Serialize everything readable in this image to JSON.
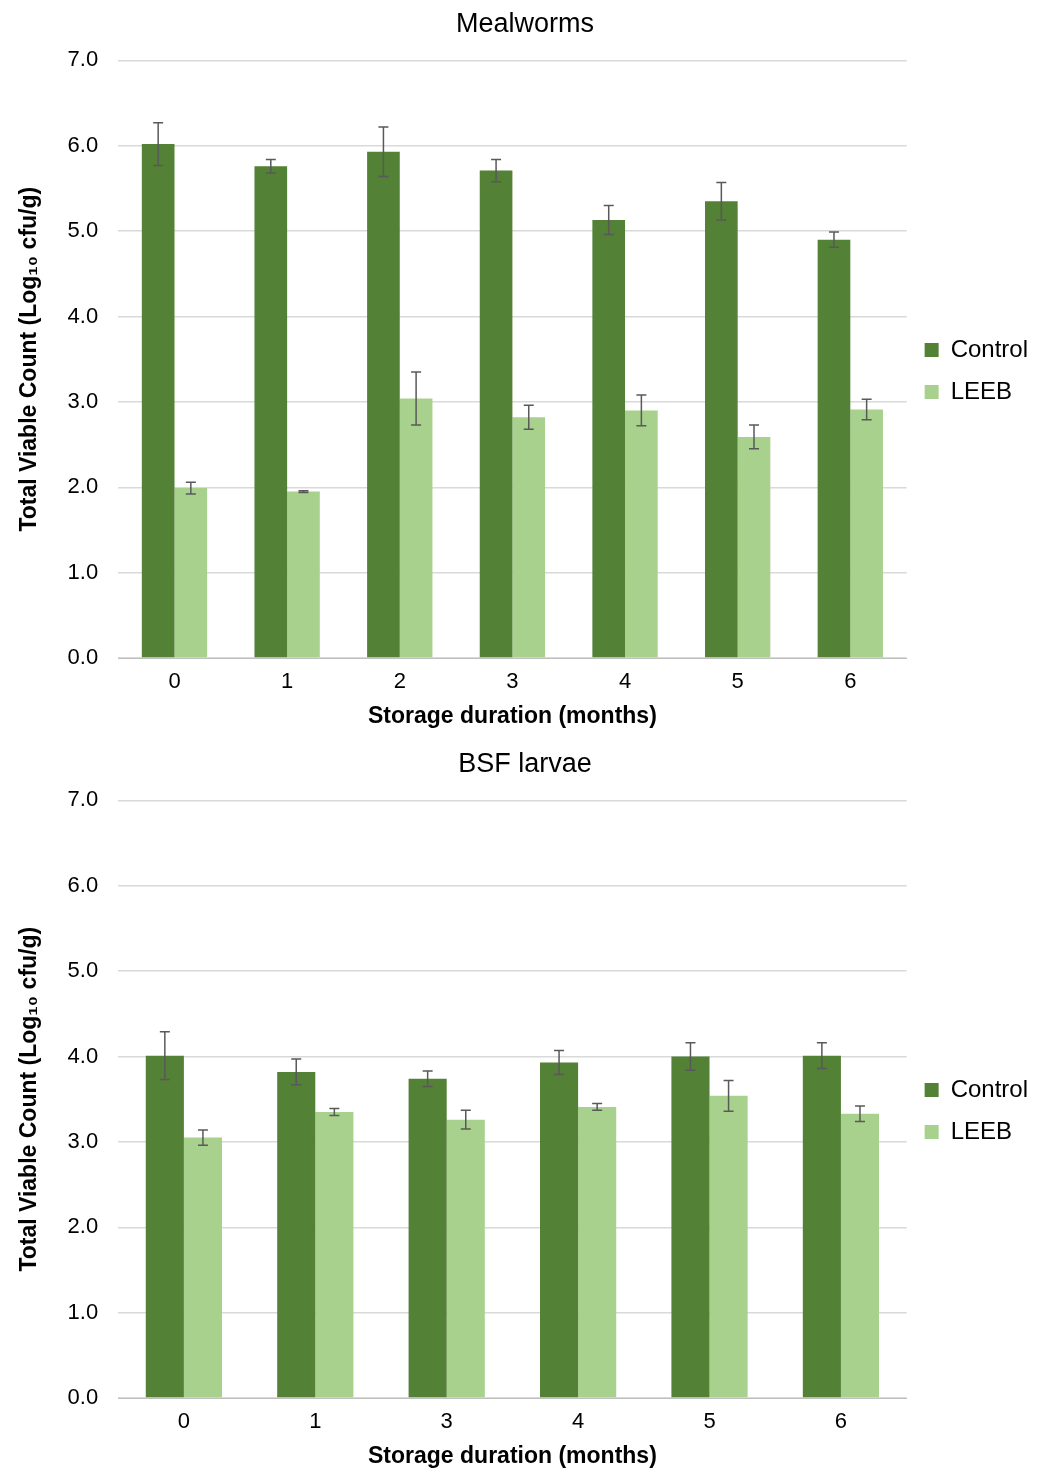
{
  "chart_data": [
    {
      "type": "bar",
      "title": "Mealworms",
      "xlabel": "Storage duration (months)",
      "ylabel": "Total Viable Count (Log₁₀ cfu/g)",
      "categories": [
        "0",
        "1",
        "2",
        "3",
        "4",
        "5",
        "6"
      ],
      "series": [
        {
          "name": "Control",
          "color": "#538135",
          "values": [
            6.02,
            5.76,
            5.93,
            5.71,
            5.13,
            5.35,
            4.9
          ],
          "errors": [
            0.25,
            0.08,
            0.29,
            0.13,
            0.17,
            0.22,
            0.09
          ]
        },
        {
          "name": "LEEB",
          "color": "#a9d18e",
          "values": [
            1.99,
            1.95,
            3.04,
            2.82,
            2.9,
            2.59,
            2.91
          ],
          "errors": [
            0.07,
            0.01,
            0.31,
            0.14,
            0.18,
            0.14,
            0.12
          ]
        }
      ],
      "ylim": [
        0,
        7
      ],
      "yticks": [
        {
          "value": 0,
          "label": "0.0"
        },
        {
          "value": 1,
          "label": "1.0"
        },
        {
          "value": 2,
          "label": "2.0"
        },
        {
          "value": 3,
          "label": "3.0"
        },
        {
          "value": 4,
          "label": "4.0"
        },
        {
          "value": 5,
          "label": "5.0"
        },
        {
          "value": 6,
          "label": "6.0"
        },
        {
          "value": 7,
          "label": "7.0"
        }
      ],
      "grid": "y",
      "legend": "right"
    },
    {
      "type": "bar",
      "title": "BSF larvae",
      "xlabel": "Storage duration (months)",
      "ylabel": "Total Viable Count (Log₁₀ cfu/g)",
      "categories": [
        "0",
        "1",
        "3",
        "4",
        "5",
        "6"
      ],
      "series": [
        {
          "name": "Control",
          "color": "#538135",
          "values": [
            4.01,
            3.82,
            3.74,
            3.93,
            4.0,
            4.01
          ],
          "errors": [
            0.28,
            0.15,
            0.09,
            0.14,
            0.16,
            0.15
          ]
        },
        {
          "name": "LEEB",
          "color": "#a9d18e",
          "values": [
            3.05,
            3.35,
            3.26,
            3.41,
            3.54,
            3.33
          ],
          "errors": [
            0.09,
            0.04,
            0.11,
            0.04,
            0.18,
            0.09
          ]
        }
      ],
      "ylim": [
        0,
        7
      ],
      "yticks": [
        {
          "value": 0,
          "label": "0.0"
        },
        {
          "value": 1,
          "label": "1.0"
        },
        {
          "value": 2,
          "label": "2.0"
        },
        {
          "value": 3,
          "label": "3.0"
        },
        {
          "value": 4,
          "label": "4.0"
        },
        {
          "value": 5,
          "label": "5.0"
        },
        {
          "value": 6,
          "label": "6.0"
        },
        {
          "value": 7,
          "label": "7.0"
        }
      ],
      "grid": "y",
      "legend": "right"
    }
  ]
}
